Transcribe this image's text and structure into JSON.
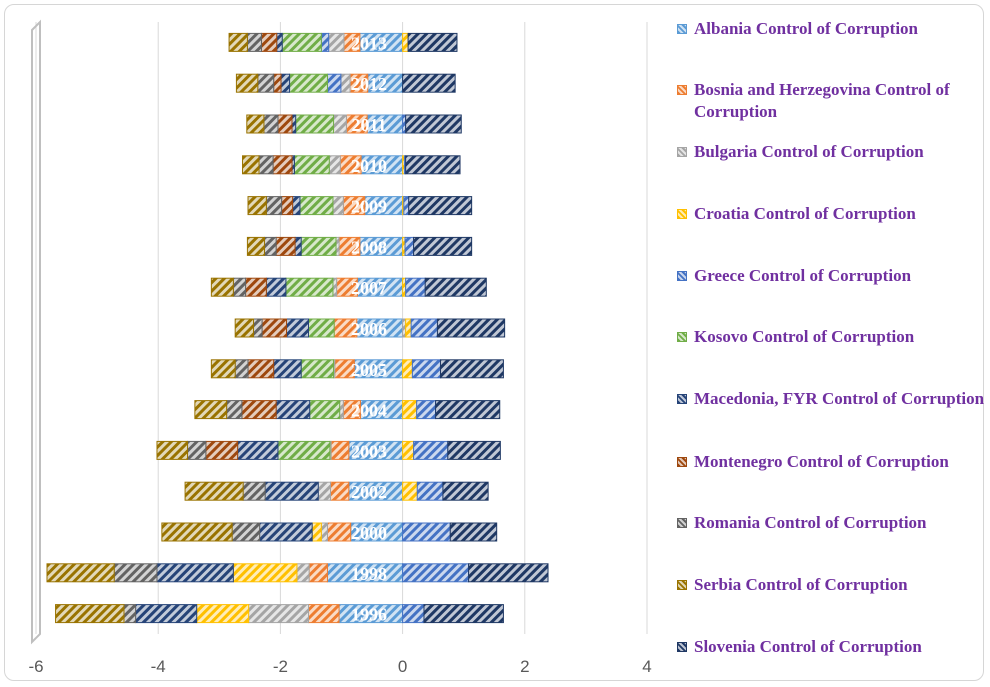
{
  "chart_data": {
    "type": "bar",
    "orientation": "horizontal",
    "stacked": true,
    "categories": [
      "1996",
      "1998",
      "2000",
      "2002",
      "2003",
      "2004",
      "2005",
      "2006",
      "2007",
      "2008",
      "2009",
      "2010",
      "2011",
      "2012",
      "2013"
    ],
    "xlim": [
      -6,
      4
    ],
    "xticks": [
      "-6",
      "-4",
      "-2",
      "0",
      "2",
      "4"
    ],
    "grid": true,
    "legend": "right",
    "series": [
      {
        "name": "Albania Control of Corruption",
        "color": "#5b9bd5",
        "values": [
          -1.04,
          -1.23,
          -0.85,
          -0.88,
          -0.88,
          -0.69,
          -0.79,
          -0.75,
          -0.74,
          -0.7,
          -0.62,
          -0.68,
          -0.58,
          -0.57,
          -0.7
        ]
      },
      {
        "name": "Bosnia and Herzegovina Control of Corruption",
        "color": "#ed7d31",
        "values": [
          -0.5,
          -0.3,
          -0.38,
          -0.3,
          -0.29,
          -0.28,
          -0.32,
          -0.37,
          -0.34,
          -0.34,
          -0.35,
          -0.34,
          -0.34,
          -0.29,
          -0.26
        ]
      },
      {
        "name": "Bulgaria Control of Corruption",
        "color": "#a5a5a5",
        "values": [
          -0.98,
          -0.2,
          -0.1,
          -0.2,
          -0.02,
          -0.06,
          -0.02,
          0.05,
          -0.06,
          -0.05,
          -0.17,
          -0.18,
          -0.21,
          -0.15,
          -0.25
        ]
      },
      {
        "name": "Croatia Control of Corruption",
        "color": "#ffc000",
        "values": [
          -0.85,
          -1.04,
          -0.15,
          0.24,
          0.18,
          0.23,
          0.16,
          0.09,
          0.05,
          0.04,
          0.02,
          0.03,
          0.0,
          0.0,
          0.09
        ]
      },
      {
        "name": "Greece Control of Corruption",
        "color": "#4472c4",
        "values": [
          0.35,
          1.08,
          0.78,
          0.42,
          0.56,
          0.31,
          0.46,
          0.43,
          0.32,
          0.14,
          0.08,
          0.02,
          0.05,
          -0.22,
          -0.12
        ]
      },
      {
        "name": "Kosovo Control of Corruption",
        "color": "#70ad47",
        "values": [
          0,
          0,
          0,
          0,
          -0.85,
          -0.49,
          -0.53,
          -0.42,
          -0.77,
          -0.57,
          -0.54,
          -0.57,
          -0.62,
          -0.62,
          -0.64
        ]
      },
      {
        "name": "Macedonia, FYR Control of Corruption",
        "color": "#264478",
        "values": [
          -1.0,
          -1.25,
          -0.86,
          -0.87,
          -0.66,
          -0.55,
          -0.45,
          -0.36,
          -0.32,
          -0.1,
          -0.12,
          -0.04,
          -0.06,
          -0.14,
          -0.09
        ]
      },
      {
        "name": "Montenegro Control of Corruption",
        "color": "#9e480e",
        "values": [
          0,
          0,
          0,
          0,
          -0.52,
          -0.56,
          -0.42,
          -0.4,
          -0.34,
          -0.31,
          -0.18,
          -0.31,
          -0.23,
          -0.12,
          -0.25
        ]
      },
      {
        "name": "Romania Control of Corruption",
        "color": "#636363",
        "values": [
          -0.19,
          -0.7,
          -0.45,
          -0.36,
          -0.3,
          -0.25,
          -0.21,
          -0.14,
          -0.2,
          -0.19,
          -0.25,
          -0.23,
          -0.23,
          -0.26,
          -0.23
        ]
      },
      {
        "name": "Serbia Control of Corruption",
        "color": "#997300",
        "values": [
          -1.12,
          -1.1,
          -1.15,
          -0.95,
          -0.5,
          -0.52,
          -0.39,
          -0.3,
          -0.36,
          -0.28,
          -0.3,
          -0.27,
          -0.28,
          -0.35,
          -0.3
        ]
      },
      {
        "name": "Slovenia Control of Corruption",
        "color": "#1f3864",
        "values": [
          1.3,
          1.3,
          0.76,
          0.74,
          0.86,
          1.05,
          1.03,
          1.1,
          1.0,
          0.95,
          1.03,
          0.89,
          0.91,
          0.86,
          0.8
        ]
      }
    ]
  }
}
